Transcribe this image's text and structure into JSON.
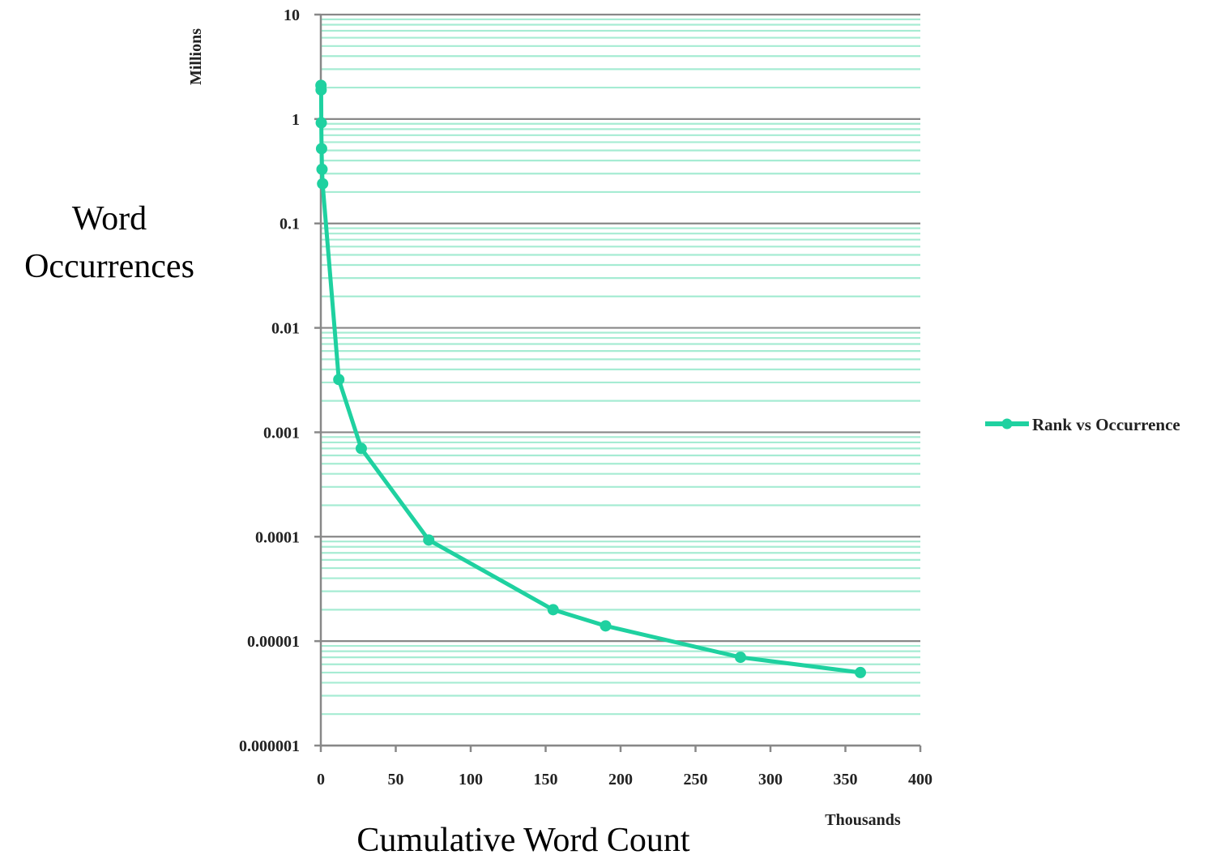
{
  "chart_data": {
    "type": "line",
    "title": "",
    "xlabel": "Cumulative Word Count",
    "ylabel_lines": [
      "Word",
      "Occurrences"
    ],
    "x_unit_label": "Thousands",
    "y_unit_label": "Millions",
    "x_scale": "linear",
    "y_scale": "log",
    "xlim": [
      0,
      400
    ],
    "ylim": [
      1e-06,
      10
    ],
    "x_ticks": [
      0,
      50,
      100,
      150,
      200,
      250,
      300,
      350,
      400
    ],
    "x_tick_labels": [
      "0",
      "50",
      "100",
      "150",
      "200",
      "250",
      "300",
      "350",
      "400"
    ],
    "y_ticks": [
      10,
      1,
      0.1,
      0.01,
      0.001,
      0.0001,
      1e-05,
      1e-06
    ],
    "y_tick_labels": [
      "10",
      "1",
      "0.1",
      "0.01",
      "0.001",
      "0.0001",
      "0.00001",
      "0.000001"
    ],
    "grid": true,
    "legend_position": "right",
    "series": [
      {
        "name": "Rank vs Occurrence",
        "color": "#1fd1a0",
        "x": [
          0.1,
          0.2,
          0.3,
          0.5,
          0.8,
          1.2,
          12,
          27,
          72,
          155,
          190,
          280,
          360
        ],
        "y": [
          2.1,
          1.9,
          0.92,
          0.52,
          0.33,
          0.24,
          0.0032,
          0.0007,
          9.3e-05,
          2e-05,
          1.4e-05,
          7e-06,
          5e-06
        ]
      }
    ],
    "colors": {
      "major_grid": "#888888",
      "minor_grid": "#a6ecd3",
      "axis": "#888888",
      "series": "#1fd1a0"
    }
  }
}
